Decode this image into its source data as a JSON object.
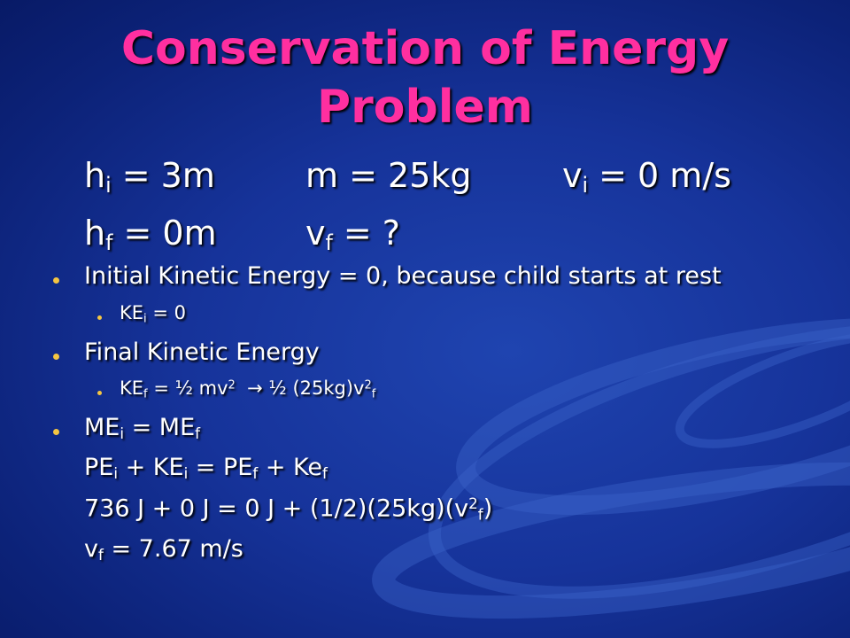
{
  "title": "Conservation of Energy Problem",
  "given": [
    [
      [
        {
          "text": "h"
        },
        {
          "sub": "i"
        },
        {
          "text": " = 3m"
        }
      ],
      [
        {
          "text": "m = 25kg"
        }
      ],
      [
        {
          "text": "v"
        },
        {
          "sub": "i"
        },
        {
          "text": " = 0 m/s"
        }
      ]
    ],
    [
      [
        {
          "text": "h"
        },
        {
          "sub": "f"
        },
        {
          "text": " = 0m"
        }
      ],
      [
        {
          "text": "v"
        },
        {
          "sub": "f"
        },
        {
          "text": " = ?"
        }
      ]
    ]
  ],
  "items": [
    {
      "level": 1,
      "bullet": true,
      "runs": [
        {
          "text": "Initial Kinetic Energy = 0, because child starts at rest"
        }
      ]
    },
    {
      "level": 2,
      "bullet": true,
      "runs": [
        {
          "text": "KE"
        },
        {
          "sub": "i"
        },
        {
          "text": " = 0"
        }
      ]
    },
    {
      "level": 1,
      "bullet": true,
      "runs": [
        {
          "text": "Final Kinetic Energy"
        }
      ]
    },
    {
      "level": 2,
      "bullet": true,
      "runs": [
        {
          "text": "KE"
        },
        {
          "sub": "f"
        },
        {
          "text": " = ½ mv"
        },
        {
          "sup": "2"
        },
        {
          "text": "  → ½ (25kg)v"
        },
        {
          "sup": "2"
        },
        {
          "sub": "f"
        }
      ]
    },
    {
      "level": 1,
      "bullet": true,
      "runs": [
        {
          "text": "ME"
        },
        {
          "sub": "i"
        },
        {
          "text": " = ME"
        },
        {
          "sub": "f"
        }
      ]
    },
    {
      "level": 1,
      "bullet": false,
      "runs": [
        {
          "text": "PE"
        },
        {
          "sub": "i"
        },
        {
          "text": " + KE"
        },
        {
          "sub": "i"
        },
        {
          "text": " = PE"
        },
        {
          "sub": "f"
        },
        {
          "text": " + Ke"
        },
        {
          "sub": "f"
        }
      ]
    },
    {
      "level": 1,
      "bullet": false,
      "runs": [
        {
          "text": "736 J + 0 J = 0 J + (1/2)(25kg)(v"
        },
        {
          "sup": "2"
        },
        {
          "sub": "f"
        },
        {
          "text": ")"
        }
      ]
    },
    {
      "level": 1,
      "bullet": false,
      "runs": [
        {
          "text": "v"
        },
        {
          "sub": "f"
        },
        {
          "text": " = 7.67 m/s"
        }
      ]
    }
  ]
}
